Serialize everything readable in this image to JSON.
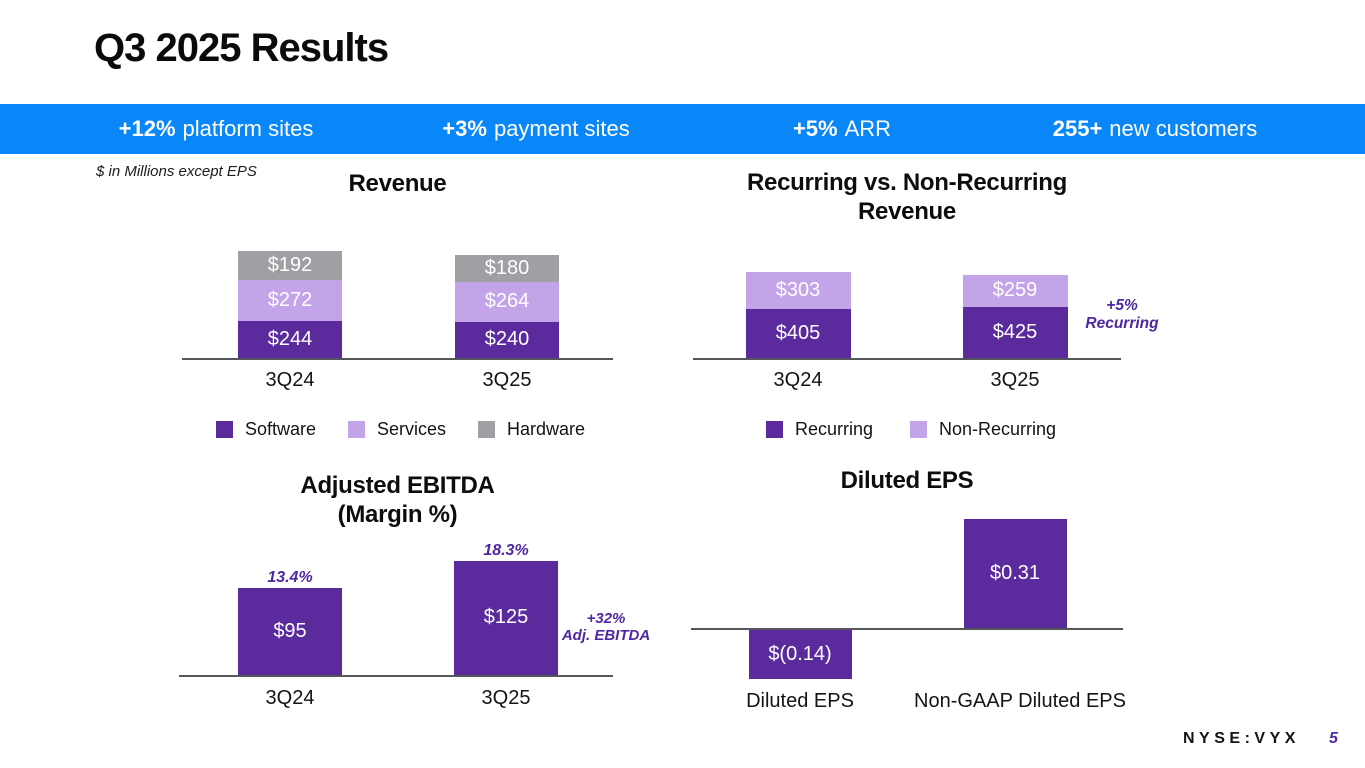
{
  "slide": {
    "title": "Q3 2025 Results",
    "footnote": "$ in Millions except EPS",
    "ticker": "NYSE:VYX",
    "page_number": "5"
  },
  "banner": {
    "background": "#0987F8",
    "items": [
      {
        "value": "+12%",
        "label": "platform sites"
      },
      {
        "value": "+3%",
        "label": "payment sites"
      },
      {
        "value": "+5%",
        "label": "ARR"
      },
      {
        "value": "255+",
        "label": "new customers"
      }
    ]
  },
  "colors": {
    "accent_blue": "#0987F8",
    "purple_dark": "#5B2A9D",
    "purple_light": "#C4A4E8",
    "gray": "#9EA0A3",
    "annotation_purple": "#4E28A0",
    "axis": "#55565A",
    "label_on_bar": "#FFFFFF"
  },
  "chart_data": [
    {
      "id": "revenue",
      "type": "bar",
      "stacked": true,
      "title": "Revenue",
      "title_lines": [
        "Revenue"
      ],
      "categories": [
        "3Q24",
        "3Q25"
      ],
      "series": [
        {
          "name": "Software",
          "color": "purple_dark",
          "values": [
            244,
            240
          ],
          "labels": [
            "$244",
            "$240"
          ]
        },
        {
          "name": "Services",
          "color": "purple_light",
          "values": [
            272,
            264
          ],
          "labels": [
            "$272",
            "$264"
          ]
        },
        {
          "name": "Hardware",
          "color": "gray",
          "values": [
            192,
            180
          ],
          "labels": [
            "$192",
            "$180"
          ]
        }
      ],
      "legend": [
        {
          "label": "Software",
          "color": "purple_dark"
        },
        {
          "label": "Services",
          "color": "purple_light"
        },
        {
          "label": "Hardware",
          "color": "gray"
        }
      ],
      "grid": false,
      "legend_position": "bottom"
    },
    {
      "id": "recurring_revenue",
      "type": "bar",
      "stacked": true,
      "title": "Recurring vs. Non-Recurring Revenue",
      "title_lines": [
        "Recurring vs. Non-Recurring",
        "Revenue"
      ],
      "categories": [
        "3Q24",
        "3Q25"
      ],
      "series": [
        {
          "name": "Recurring",
          "color": "purple_dark",
          "values": [
            405,
            425
          ],
          "labels": [
            "$405",
            "$425"
          ]
        },
        {
          "name": "Non-Recurring",
          "color": "purple_light",
          "values": [
            303,
            259
          ],
          "labels": [
            "$303",
            "$259"
          ]
        }
      ],
      "legend": [
        {
          "label": "Recurring",
          "color": "purple_dark"
        },
        {
          "label": "Non-Recurring",
          "color": "purple_light"
        }
      ],
      "annotation": "+5% Recurring",
      "annotation_lines": [
        "+5%",
        "Recurring"
      ],
      "grid": false,
      "legend_position": "bottom"
    },
    {
      "id": "adjusted_ebitda",
      "type": "bar",
      "stacked": false,
      "title": "Adjusted EBITDA (Margin %)",
      "title_lines": [
        "Adjusted EBITDA",
        "(Margin %)"
      ],
      "categories": [
        "3Q24",
        "3Q25"
      ],
      "values": [
        95,
        125
      ],
      "bar_labels": [
        "$95",
        "$125"
      ],
      "margin_labels": [
        "13.4%",
        "18.3%"
      ],
      "annotation": "+32% Adj. EBITDA",
      "annotation_lines": [
        "+32%",
        "Adj. EBITDA"
      ],
      "grid": false
    },
    {
      "id": "diluted_eps",
      "type": "bar",
      "stacked": false,
      "title": "Diluted EPS",
      "title_lines": [
        "Diluted EPS"
      ],
      "categories": [
        "Diluted EPS",
        "Non-GAAP Diluted EPS"
      ],
      "values": [
        -0.14,
        0.31
      ],
      "bar_labels": [
        "$(0.14)",
        "$0.31"
      ],
      "grid": false
    }
  ]
}
